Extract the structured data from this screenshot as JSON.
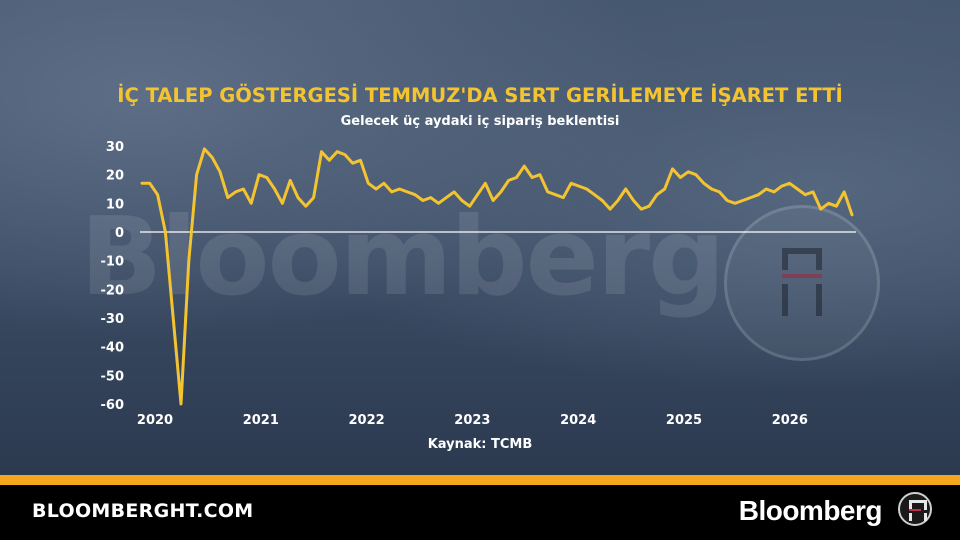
{
  "title": "İÇ TALEP GÖSTERGESİ TEMMUZ'DA SERT GERİLEMEYE İŞARET ETTİ",
  "subtitle": "Gelecek üç aydaki iç sipariş beklentisi",
  "source": "Kaynak: TCMB",
  "footer": {
    "site": "BLOOMBERGHT.COM",
    "brand": "Bloomberg"
  },
  "watermark": "Bloomberg",
  "colors": {
    "line": "#f4c430",
    "title": "#f4c430",
    "accent_rule": "#f5a51e",
    "text": "#ffffff"
  },
  "chart_data": {
    "type": "line",
    "title": "İÇ TALEP GÖSTERGESİ TEMMUZ'DA SERT GERİLEMEYE İŞARET ETTİ",
    "subtitle": "Gelecek üç aydaki iç sipariş beklentisi",
    "xlabel": "",
    "ylabel": "",
    "ylim": [
      -60,
      30
    ],
    "yticks": [
      30,
      20,
      10,
      0,
      -10,
      -20,
      -30,
      -40,
      -50,
      -60
    ],
    "xticks": [
      "2020",
      "2021",
      "2022",
      "2023",
      "2024",
      "2025",
      "2026"
    ],
    "grid": "zero line only",
    "series": [
      {
        "values": [
          17,
          17,
          13,
          0,
          -30,
          -60,
          -10,
          20,
          29,
          26,
          21,
          12,
          14,
          15,
          10,
          20,
          19,
          15,
          10,
          18,
          12,
          9,
          12,
          28,
          25,
          28,
          27,
          24,
          25,
          17,
          15,
          17,
          14,
          15,
          14,
          13,
          11,
          12,
          10,
          12,
          14,
          11,
          9,
          13,
          17,
          11,
          14,
          18,
          19,
          23,
          19,
          20,
          14,
          13,
          12,
          17,
          16,
          15,
          13,
          11,
          8,
          11,
          15,
          11,
          8,
          9,
          13,
          15,
          22,
          19,
          21,
          20,
          17,
          15,
          14,
          11,
          10,
          11,
          12,
          13,
          15,
          14,
          16,
          17,
          15,
          13,
          14,
          8,
          10,
          9,
          14,
          6
        ]
      }
    ]
  }
}
